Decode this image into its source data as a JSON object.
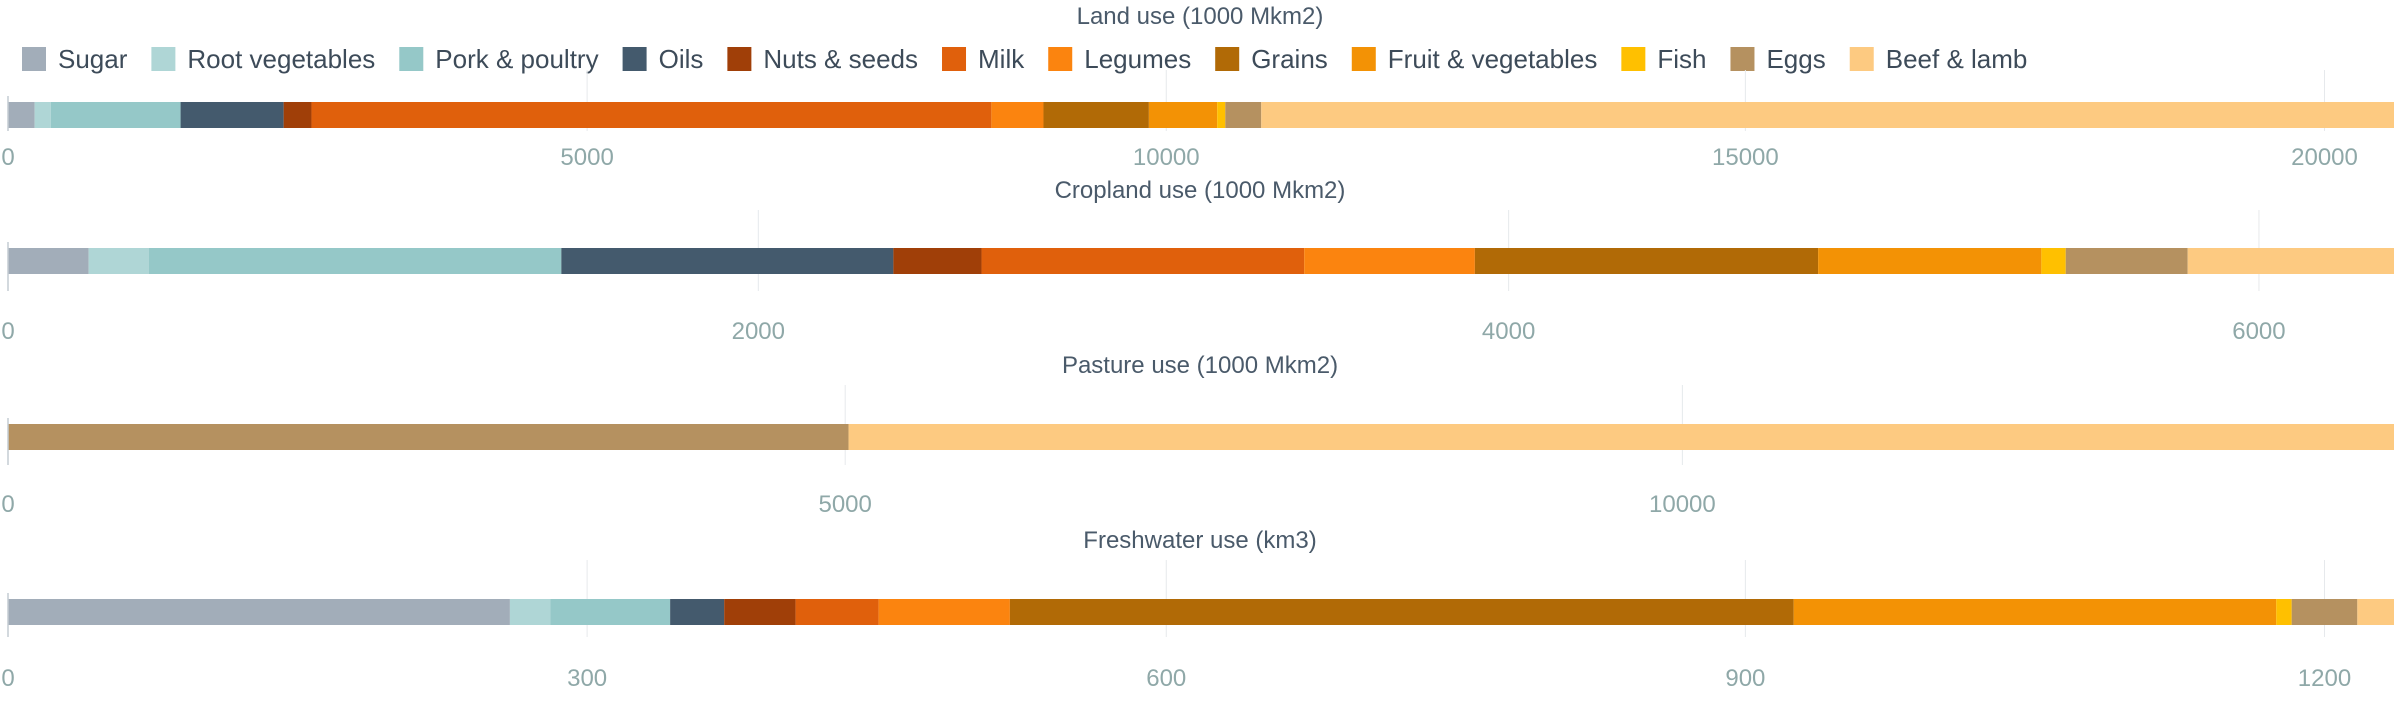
{
  "chart_data": {
    "type": "bar",
    "orientation": "horizontal-stacked",
    "legend": {
      "placement": "top-left",
      "entries": [
        {
          "name": "Sugar",
          "color": "#a2adb9"
        },
        {
          "name": "Root vegetables",
          "color": "#afd6d6"
        },
        {
          "name": "Pork & poultry",
          "color": "#95c8c8"
        },
        {
          "name": "Oils",
          "color": "#445a6d"
        },
        {
          "name": "Nuts & seeds",
          "color": "#a03f08"
        },
        {
          "name": "Milk",
          "color": "#e0600c"
        },
        {
          "name": "Legumes",
          "color": "#fb840f"
        },
        {
          "name": "Grains",
          "color": "#b16a06"
        },
        {
          "name": "Fruit & vegetables",
          "color": "#f39205"
        },
        {
          "name": "Fish",
          "color": "#ffc000"
        },
        {
          "name": "Eggs",
          "color": "#b59160"
        },
        {
          "name": "Beef & lamb",
          "color": "#fdca81"
        }
      ]
    },
    "panels": [
      {
        "title": "Land use (1000 Mkm2)",
        "xlim": [
          0,
          20600
        ],
        "ticks": [
          0,
          5000,
          10000,
          15000,
          20000
        ],
        "grid": true,
        "segments": [
          {
            "name": "Sugar",
            "value": 230
          },
          {
            "name": "Root vegetables",
            "value": 140
          },
          {
            "name": "Pork & poultry",
            "value": 1120
          },
          {
            "name": "Oils",
            "value": 890
          },
          {
            "name": "Nuts & seeds",
            "value": 240
          },
          {
            "name": "Milk",
            "value": 5870
          },
          {
            "name": "Legumes",
            "value": 450
          },
          {
            "name": "Grains",
            "value": 910
          },
          {
            "name": "Fruit & vegetables",
            "value": 590
          },
          {
            "name": "Fish",
            "value": 70
          },
          {
            "name": "Eggs",
            "value": 310
          },
          {
            "name": "Beef & lamb",
            "value": 9780
          }
        ]
      },
      {
        "title": "Cropland use (1000 Mkm2)",
        "xlim": [
          0,
          6360
        ],
        "ticks": [
          0,
          2000,
          4000,
          6000
        ],
        "grid": true,
        "segments": [
          {
            "name": "Sugar",
            "value": 215
          },
          {
            "name": "Root vegetables",
            "value": 160
          },
          {
            "name": "Pork & poultry",
            "value": 1100
          },
          {
            "name": "Oils",
            "value": 885
          },
          {
            "name": "Nuts & seeds",
            "value": 235
          },
          {
            "name": "Milk",
            "value": 860
          },
          {
            "name": "Legumes",
            "value": 455
          },
          {
            "name": "Grains",
            "value": 915
          },
          {
            "name": "Fruit & vegetables",
            "value": 595
          },
          {
            "name": "Fish",
            "value": 65
          },
          {
            "name": "Eggs",
            "value": 325
          },
          {
            "name": "Beef & lamb",
            "value": 550
          }
        ]
      },
      {
        "title": "Pasture use (1000 Mkm2)",
        "xlim": [
          0,
          14250
        ],
        "ticks": [
          0,
          5000,
          10000
        ],
        "grid": true,
        "segments": [
          {
            "name": "Eggs",
            "value": 5020
          },
          {
            "name": "Beef & lamb",
            "value": 9230
          }
        ]
      },
      {
        "title": "Freshwater use (km3)",
        "xlim": [
          0,
          1236
        ],
        "ticks": [
          0,
          300,
          600,
          900,
          1200
        ],
        "grid": true,
        "segments": [
          {
            "name": "Sugar",
            "value": 260
          },
          {
            "name": "Root vegetables",
            "value": 21
          },
          {
            "name": "Pork & poultry",
            "value": 62
          },
          {
            "name": "Oils",
            "value": 28
          },
          {
            "name": "Nuts & seeds",
            "value": 37
          },
          {
            "name": "Milk",
            "value": 43
          },
          {
            "name": "Legumes",
            "value": 68
          },
          {
            "name": "Grains",
            "value": 406
          },
          {
            "name": "Fruit & vegetables",
            "value": 250
          },
          {
            "name": "Fish",
            "value": 8
          },
          {
            "name": "Eggs",
            "value": 34
          },
          {
            "name": "Beef & lamb",
            "value": 19
          }
        ]
      }
    ]
  }
}
